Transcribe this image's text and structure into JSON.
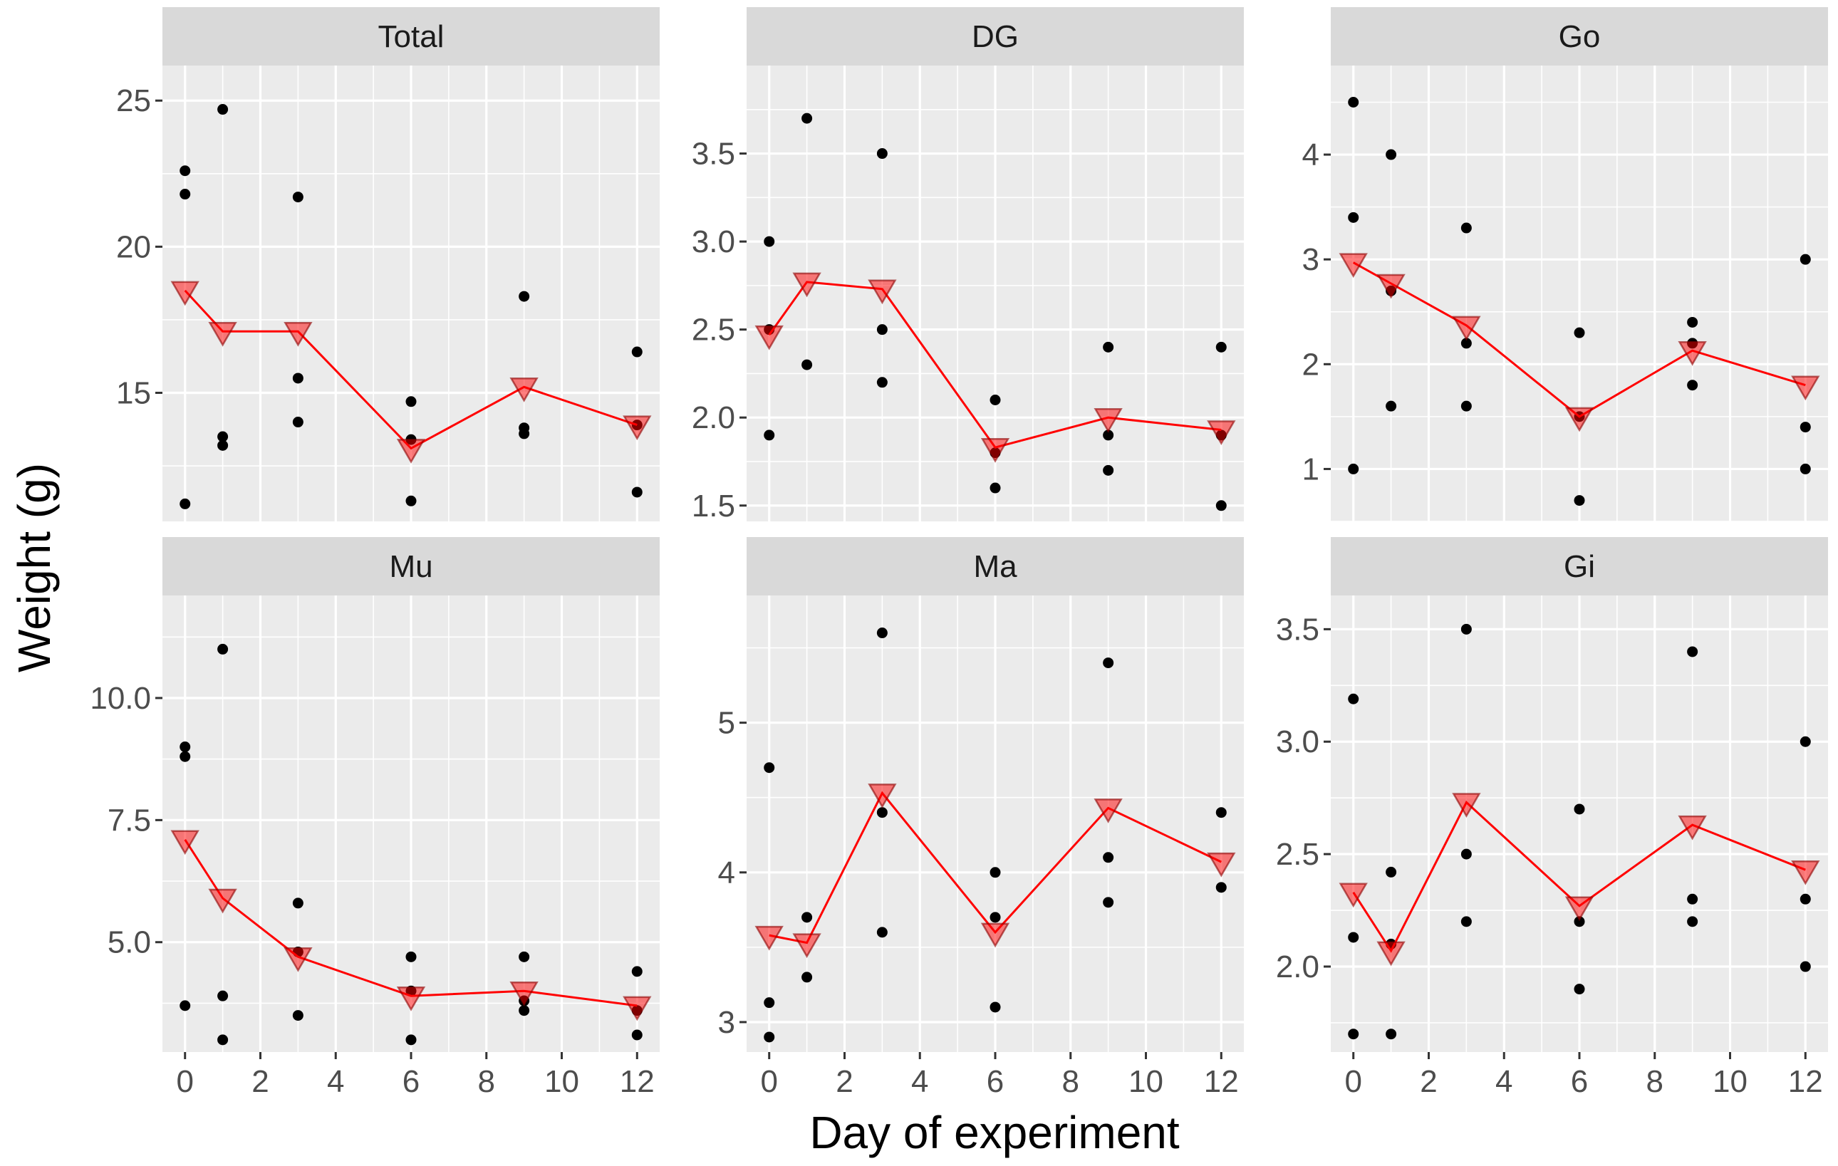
{
  "chart_data": {
    "type": "scatter",
    "xlabel": "Day of experiment",
    "ylabel": "Weight (g)",
    "xlim": [
      -0.6,
      12.6
    ],
    "xticks": [
      0,
      2,
      4,
      6,
      8,
      10,
      12
    ],
    "colors": {
      "points": "#000000",
      "mean_line": "#ff0000",
      "mean_marker": "#ff0000",
      "panel": "#ebebeb",
      "strip": "#d9d9d9"
    },
    "panels": [
      {
        "title": "Total",
        "ylim": [
          10.6,
          26.2
        ],
        "yticks": [
          15,
          20,
          25
        ],
        "ytick_labels": [
          "15",
          "20",
          "25"
        ],
        "points": [
          [
            0,
            11.2
          ],
          [
            0,
            21.8
          ],
          [
            0,
            22.6
          ],
          [
            1,
            13.2
          ],
          [
            1,
            13.5
          ],
          [
            1,
            24.7
          ],
          [
            3,
            14.0
          ],
          [
            3,
            15.5
          ],
          [
            3,
            21.7
          ],
          [
            6,
            11.3
          ],
          [
            6,
            13.4
          ],
          [
            6,
            14.7
          ],
          [
            9,
            13.6
          ],
          [
            9,
            13.8
          ],
          [
            9,
            18.3
          ],
          [
            12,
            11.6
          ],
          [
            12,
            13.9
          ],
          [
            12,
            16.4
          ]
        ],
        "means": [
          [
            0,
            18.5
          ],
          [
            1,
            17.1
          ],
          [
            3,
            17.1
          ],
          [
            6,
            13.1
          ],
          [
            9,
            15.2
          ],
          [
            12,
            13.9
          ]
        ]
      },
      {
        "title": "DG",
        "ylim": [
          1.41,
          4.0
        ],
        "yticks": [
          1.5,
          2.0,
          2.5,
          3.0,
          3.5
        ],
        "ytick_labels": [
          "1.5",
          "2.0",
          "2.5",
          "3.0",
          "3.5"
        ],
        "points": [
          [
            0,
            1.9
          ],
          [
            0,
            2.5
          ],
          [
            0,
            3.0
          ],
          [
            1,
            2.3
          ],
          [
            1,
            3.7
          ],
          [
            3,
            2.2
          ],
          [
            3,
            2.5
          ],
          [
            3,
            3.5
          ],
          [
            6,
            1.6
          ],
          [
            6,
            1.8
          ],
          [
            6,
            2.1
          ],
          [
            9,
            1.7
          ],
          [
            9,
            1.9
          ],
          [
            9,
            2.4
          ],
          [
            12,
            1.5
          ],
          [
            12,
            1.9
          ],
          [
            12,
            2.4
          ]
        ],
        "means": [
          [
            0,
            2.47
          ],
          [
            1,
            2.77
          ],
          [
            3,
            2.73
          ],
          [
            6,
            1.83
          ],
          [
            9,
            2.0
          ],
          [
            12,
            1.93
          ]
        ]
      },
      {
        "title": "Go",
        "ylim": [
          0.5,
          4.85
        ],
        "yticks": [
          1,
          2,
          3,
          4
        ],
        "ytick_labels": [
          "1",
          "2",
          "3",
          "4"
        ],
        "points": [
          [
            0,
            1.0
          ],
          [
            0,
            3.4
          ],
          [
            0,
            4.5
          ],
          [
            1,
            1.6
          ],
          [
            1,
            2.7
          ],
          [
            1,
            4.0
          ],
          [
            3,
            1.6
          ],
          [
            3,
            2.2
          ],
          [
            3,
            3.3
          ],
          [
            6,
            0.7
          ],
          [
            6,
            1.5
          ],
          [
            6,
            2.3
          ],
          [
            9,
            1.8
          ],
          [
            9,
            2.2
          ],
          [
            9,
            2.4
          ],
          [
            12,
            1.0
          ],
          [
            12,
            1.4
          ],
          [
            12,
            3.0
          ]
        ],
        "means": [
          [
            0,
            2.97
          ],
          [
            1,
            2.77
          ],
          [
            3,
            2.37
          ],
          [
            6,
            1.5
          ],
          [
            9,
            2.13
          ],
          [
            12,
            1.8
          ]
        ]
      },
      {
        "title": "Mu",
        "ylim": [
          2.75,
          12.1
        ],
        "yticks": [
          5.0,
          7.5,
          10.0
        ],
        "ytick_labels": [
          "5.0",
          "7.5",
          "10.0"
        ],
        "points": [
          [
            0,
            3.7
          ],
          [
            0,
            8.8
          ],
          [
            0,
            9.0
          ],
          [
            1,
            3.0
          ],
          [
            1,
            3.9
          ],
          [
            1,
            11.0
          ],
          [
            3,
            3.5
          ],
          [
            3,
            4.8
          ],
          [
            3,
            5.8
          ],
          [
            6,
            3.0
          ],
          [
            6,
            4.0
          ],
          [
            6,
            4.7
          ],
          [
            9,
            3.6
          ],
          [
            9,
            3.8
          ],
          [
            9,
            4.7
          ],
          [
            12,
            3.1
          ],
          [
            12,
            3.6
          ],
          [
            12,
            4.4
          ]
        ],
        "means": [
          [
            0,
            7.1
          ],
          [
            1,
            5.9
          ],
          [
            3,
            4.7
          ],
          [
            6,
            3.9
          ],
          [
            9,
            4.0
          ],
          [
            12,
            3.7
          ]
        ]
      },
      {
        "title": "Ma",
        "ylim": [
          2.8,
          5.85
        ],
        "yticks": [
          3,
          4,
          5
        ],
        "ytick_labels": [
          "3",
          "4",
          "5"
        ],
        "points": [
          [
            0,
            2.9
          ],
          [
            0,
            3.13
          ],
          [
            0,
            4.7
          ],
          [
            1,
            3.3
          ],
          [
            1,
            3.7
          ],
          [
            3,
            3.6
          ],
          [
            3,
            4.4
          ],
          [
            3,
            5.6
          ],
          [
            6,
            3.1
          ],
          [
            6,
            3.7
          ],
          [
            6,
            4.0
          ],
          [
            9,
            3.8
          ],
          [
            9,
            4.1
          ],
          [
            9,
            5.4
          ],
          [
            12,
            3.9
          ],
          [
            12,
            4.4
          ]
        ],
        "means": [
          [
            0,
            3.58
          ],
          [
            1,
            3.53
          ],
          [
            3,
            4.53
          ],
          [
            6,
            3.6
          ],
          [
            9,
            4.43
          ],
          [
            12,
            4.07
          ]
        ]
      },
      {
        "title": "Gi",
        "ylim": [
          1.62,
          3.65
        ],
        "yticks": [
          2.0,
          2.5,
          3.0,
          3.5
        ],
        "ytick_labels": [
          "2.0",
          "2.5",
          "3.0",
          "3.5"
        ],
        "points": [
          [
            0,
            1.7
          ],
          [
            0,
            2.13
          ],
          [
            0,
            3.19
          ],
          [
            1,
            1.7
          ],
          [
            1,
            2.1
          ],
          [
            1,
            2.42
          ],
          [
            3,
            2.2
          ],
          [
            3,
            2.5
          ],
          [
            3,
            3.5
          ],
          [
            6,
            1.9
          ],
          [
            6,
            2.2
          ],
          [
            6,
            2.7
          ],
          [
            9,
            2.2
          ],
          [
            9,
            2.3
          ],
          [
            9,
            3.4
          ],
          [
            12,
            2.0
          ],
          [
            12,
            2.3
          ],
          [
            12,
            3.0
          ]
        ],
        "means": [
          [
            0,
            2.33
          ],
          [
            1,
            2.07
          ],
          [
            3,
            2.73
          ],
          [
            6,
            2.27
          ],
          [
            9,
            2.63
          ],
          [
            12,
            2.43
          ]
        ]
      }
    ]
  }
}
